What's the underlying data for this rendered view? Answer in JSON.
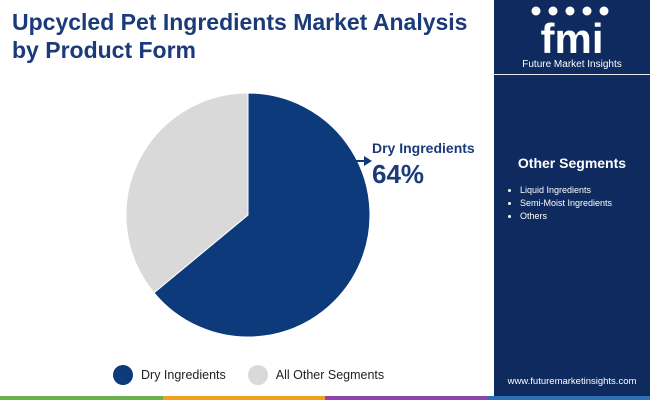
{
  "title": "Upcycled Pet Ingredients Market Analysis by Product Form",
  "logo": {
    "mark": "fmi",
    "text": "Future Market Insights"
  },
  "sidebar": {
    "heading": "Other Segments",
    "items": [
      "Liquid Ingredients",
      "Semi-Moist Ingredients",
      "Others"
    ],
    "website": "www.futuremarketinsights.com"
  },
  "callout": {
    "label": "Dry Ingredients",
    "value": "64%"
  },
  "colors": {
    "primary": "#0d3a7a",
    "secondary": "#d9d9d9",
    "sidebar_bg": "#0f2a5e",
    "title": "#1a3a7a",
    "bottom_bar": [
      "#6ab04c",
      "#f0a020",
      "#8e44ad",
      "#2f6fb5"
    ]
  },
  "chart_data": {
    "type": "pie",
    "title": "Upcycled Pet Ingredients Market Analysis by Product Form",
    "slices": [
      {
        "label": "Dry Ingredients",
        "value": 64,
        "color": "#0d3a7a"
      },
      {
        "label": "All Other Segments",
        "value": 36,
        "color": "#d9d9d9"
      }
    ],
    "legend": {
      "position": "bottom",
      "entries": [
        "Dry Ingredients",
        "All Other Segments"
      ]
    }
  }
}
